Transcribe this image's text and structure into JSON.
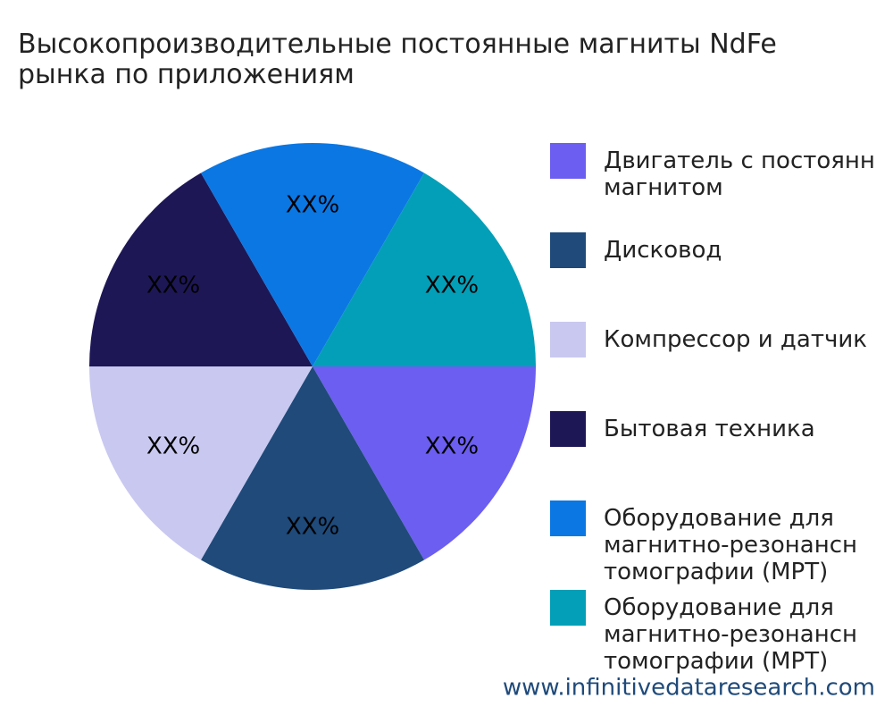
{
  "chart_data": {
    "type": "pie",
    "title": "Высокопроизводительные постоянные магниты NdFe\nрынка по приложениям",
    "categories": [
      "Двигатель с постоянн\nмагнитом",
      "Дисковод",
      "Компрессор и датчик",
      "Бытовая техника",
      "Оборудование для\nмагнитно-резонансн\nтомографии (МРТ)",
      "Оборудование для\nмагнитно-резонансн\nтомографии (МРТ)"
    ],
    "values": [
      16.67,
      16.67,
      16.67,
      16.67,
      16.67,
      16.67
    ],
    "value_labels": [
      "XX%",
      "XX%",
      "XX%",
      "XX%",
      "XX%",
      "XX%"
    ],
    "colors": [
      "#6c5ef0",
      "#1f4a7a",
      "#c8c8f0",
      "#1d1756",
      "#0b77e3",
      "#039fb8"
    ],
    "legend": "right",
    "watermark": "www.infinitivedataresearch.com"
  }
}
